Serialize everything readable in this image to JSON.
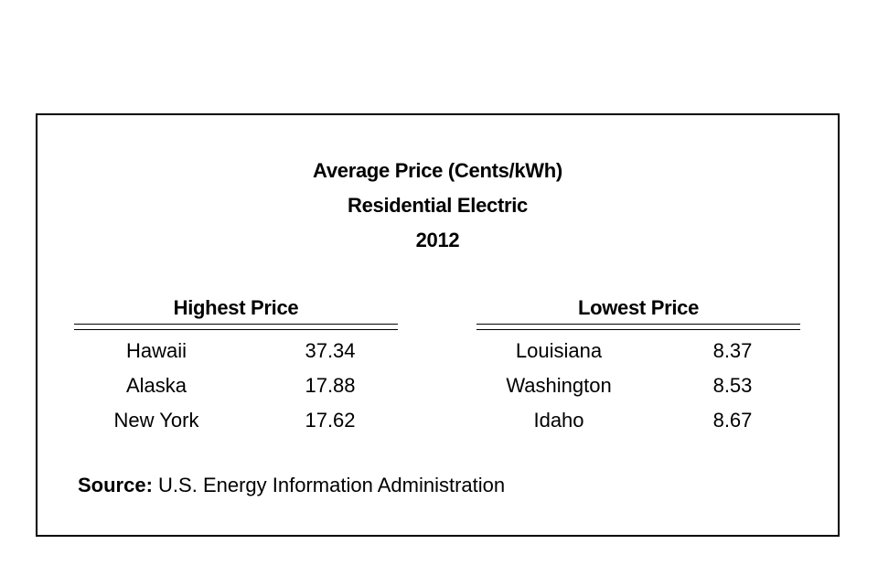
{
  "chart_data": {
    "type": "table",
    "title": [
      "Average Price (Cents/kWh)",
      "Residential Electric",
      "2012"
    ],
    "tables": [
      {
        "heading": "Highest Price",
        "rows": [
          {
            "state": "Hawaii",
            "value": "37.34"
          },
          {
            "state": "Alaska",
            "value": "17.88"
          },
          {
            "state": "New York",
            "value": "17.62"
          }
        ]
      },
      {
        "heading": "Lowest Price",
        "rows": [
          {
            "state": "Louisiana",
            "value": "8.37"
          },
          {
            "state": "Washington",
            "value": "8.53"
          },
          {
            "state": "Idaho",
            "value": "8.67"
          }
        ]
      }
    ],
    "source_label": "Source:",
    "source_text": "U.S. Energy Information Administration"
  }
}
